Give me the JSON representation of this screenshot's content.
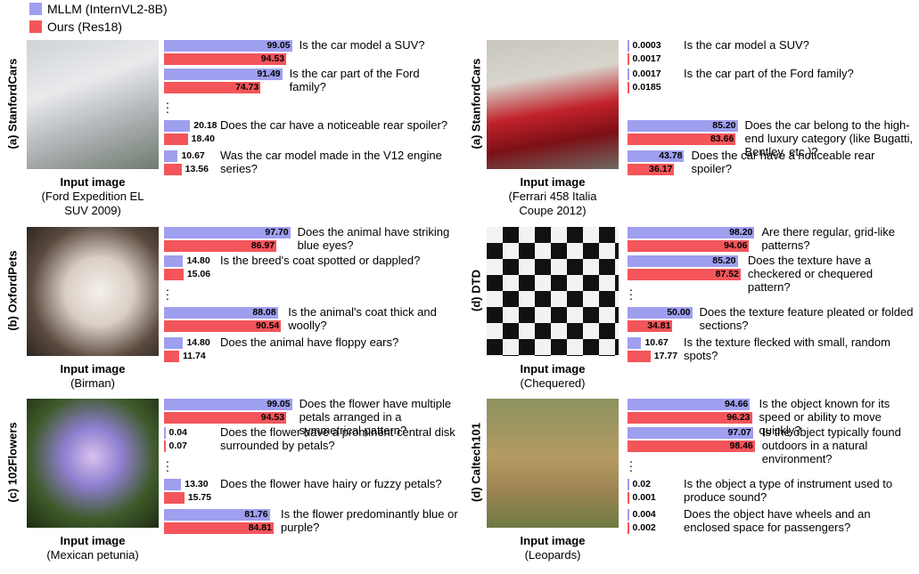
{
  "legend": [
    {
      "name": "MLLM (InternVL2-8B)",
      "color": "#9f9ff0"
    },
    {
      "name": "Ours (Res18)",
      "color": "#f4555a"
    }
  ],
  "chart_data": [
    {
      "type": "bar",
      "panel_label": "(a) StanfordCars",
      "image_caption": "Input image",
      "image_class": "(Ford Expedition EL SUV 2009)",
      "xlim": [
        0,
        100
      ],
      "categories": [
        "Is the car model a SUV?",
        "Is the car part of the Ford family?",
        "Does the car have a noticeable rear spoiler?",
        "Was the car model made in the V12 engine series?"
      ],
      "series": [
        {
          "values": [
            99.05,
            91.49,
            20.18,
            10.67
          ],
          "value_labels": [
            "99.05",
            "91.49",
            "20.18",
            "10.67"
          ]
        },
        {
          "values": [
            94.53,
            74.73,
            18.4,
            13.56
          ],
          "value_labels": [
            "94.53",
            "74.73",
            "18.40",
            "13.56"
          ]
        }
      ]
    },
    {
      "type": "bar",
      "panel_label": "(a) StanfordCars",
      "image_caption": "Input image",
      "image_class": "(Ferrari 458 Italia Coupe 2012)",
      "xlim": [
        0,
        100
      ],
      "categories": [
        "Is the car model a SUV?",
        "Is the car part of the Ford family?",
        "Does the car belong to the high-end luxury category (like Bugatti, Bentley, etc.)?",
        "Does the car have a noticeable rear spoiler?"
      ],
      "series": [
        {
          "values": [
            0.0003,
            0.0017,
            85.2,
            43.78
          ],
          "value_labels": [
            "0.0003",
            "0.0017",
            "85.20",
            "43.78"
          ]
        },
        {
          "values": [
            0.0017,
            0.0185,
            83.66,
            36.17
          ],
          "value_labels": [
            "0.0017",
            "0.0185",
            "83.66",
            "36.17"
          ]
        }
      ]
    },
    {
      "type": "bar",
      "panel_label": "(b) OxfordPets",
      "image_caption": "Input image",
      "image_class": "(Birman)",
      "xlim": [
        0,
        100
      ],
      "categories": [
        "Does the animal have striking blue eyes?",
        "Is the breed's coat spotted or dappled?",
        "Is the animal's coat thick and woolly?",
        "Does the animal have floppy ears?"
      ],
      "series": [
        {
          "values": [
            97.7,
            14.8,
            88.08,
            14.8
          ],
          "value_labels": [
            "97.70",
            "14.80",
            "88.08",
            "14.80"
          ]
        },
        {
          "values": [
            86.97,
            15.06,
            90.54,
            11.74
          ],
          "value_labels": [
            "86.97",
            "15.06",
            "90.54",
            "11.74"
          ]
        }
      ]
    },
    {
      "type": "bar",
      "panel_label": "(d) DTD",
      "image_caption": "Input image",
      "image_class": "(Chequered)",
      "xlim": [
        0,
        100
      ],
      "categories": [
        "Are there regular, grid-like patterns?",
        "Does the texture have a checkered or chequered pattern?",
        "Does the texture feature pleated or folded sections?",
        "Is the texture flecked with small, random spots?"
      ],
      "series": [
        {
          "values": [
            98.2,
            85.2,
            50.0,
            10.67
          ],
          "value_labels": [
            "98.20",
            "85.20",
            "50.00",
            "10.67"
          ]
        },
        {
          "values": [
            94.06,
            87.52,
            34.81,
            17.77
          ],
          "value_labels": [
            "94.06",
            "87.52",
            "34.81",
            "17.77"
          ]
        }
      ]
    },
    {
      "type": "bar",
      "panel_label": "(c) 102Flowers",
      "image_caption": "Input image",
      "image_class": "(Mexican petunia)",
      "xlim": [
        0,
        100
      ],
      "categories": [
        "Does the flower have multiple petals arranged in a symmetrical pattern?",
        "Does the flower have a prominent central disk surrounded by petals?",
        "Does the flower have hairy or fuzzy petals?",
        "Is the flower predominantly blue or purple?"
      ],
      "series": [
        {
          "values": [
            99.05,
            0.04,
            13.3,
            81.76
          ],
          "value_labels": [
            "99.05",
            "0.04",
            "13.30",
            "81.76"
          ]
        },
        {
          "values": [
            94.53,
            0.07,
            15.75,
            84.81
          ],
          "value_labels": [
            "94.53",
            "0.07",
            "15.75",
            "84.81"
          ]
        }
      ]
    },
    {
      "type": "bar",
      "panel_label": "(d) Caltech101",
      "image_caption": "Input image",
      "image_class": "(Leopards)",
      "xlim": [
        0,
        100
      ],
      "categories": [
        "Is the object known for its speed or ability to move quickly?",
        "Is the object typically found outdoors in a natural environment?",
        "Is the object a type of instrument used to produce sound?",
        "Does the object have wheels and an enclosed space for passengers?"
      ],
      "series": [
        {
          "values": [
            94.66,
            97.07,
            0.02,
            0.004
          ],
          "value_labels": [
            "94.66",
            "97.07",
            "0.02",
            "0.004"
          ]
        },
        {
          "values": [
            96.23,
            98.46,
            0.001,
            0.002
          ],
          "value_labels": [
            "96.23",
            "98.46",
            "0.001",
            "0.002"
          ]
        }
      ]
    }
  ]
}
